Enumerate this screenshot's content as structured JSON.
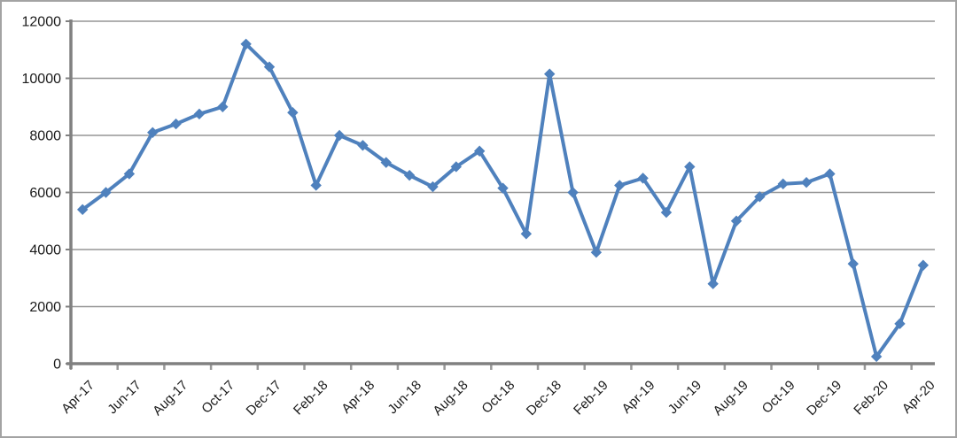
{
  "chart_data": {
    "type": "line",
    "title": "",
    "xlabel": "",
    "ylabel": "",
    "legend": "none",
    "grid": "horizontal",
    "marker": "diamond",
    "x": [
      "Apr-17",
      "May-17",
      "Jun-17",
      "Jul-17",
      "Aug-17",
      "Sep-17",
      "Oct-17",
      "Nov-17",
      "Dec-17",
      "Jan-18",
      "Feb-18",
      "Mar-18",
      "Apr-18",
      "May-18",
      "Jun-18",
      "Jul-18",
      "Aug-18",
      "Sep-18",
      "Oct-18",
      "Nov-18",
      "Dec-18",
      "Jan-19",
      "Feb-19",
      "Mar-19",
      "Apr-19",
      "May-19",
      "Jun-19",
      "Jul-19",
      "Aug-19",
      "Sep-19",
      "Oct-19",
      "Nov-19",
      "Dec-19",
      "Jan-20",
      "Feb-20",
      "Mar-20",
      "Apr-20"
    ],
    "values": [
      5400,
      6000,
      6650,
      8100,
      8400,
      8750,
      9000,
      11200,
      10400,
      8800,
      6250,
      8000,
      7650,
      7050,
      6600,
      6200,
      6900,
      7450,
      6150,
      4550,
      10150,
      6000,
      3900,
      6250,
      6500,
      5300,
      6900,
      2800,
      5000,
      5850,
      6300,
      6350,
      6650,
      3500,
      250,
      1400,
      3450
    ],
    "x_tick_labels": [
      "Apr-17",
      "Jun-17",
      "Aug-17",
      "Oct-17",
      "Dec-17",
      "Feb-18",
      "Apr-18",
      "Jun-18",
      "Aug-18",
      "Oct-18",
      "Dec-18",
      "Feb-19",
      "Apr-19",
      "Jun-19",
      "Aug-19",
      "Oct-19",
      "Dec-19",
      "Feb-20",
      "Apr-20"
    ],
    "x_label_interval": 2,
    "y_tick_labels": [
      "0",
      "2000",
      "4000",
      "6000",
      "8000",
      "10000",
      "12000"
    ],
    "ylim": [
      0,
      12000
    ],
    "ytick_step": 2000,
    "colors": {
      "series": "#4F81BD",
      "gridline": "#969696",
      "axis": "#808080",
      "tick": "#999999",
      "text": "#1a1a1a",
      "frame_border": "#a3a3a3",
      "background": "#ffffff"
    }
  }
}
